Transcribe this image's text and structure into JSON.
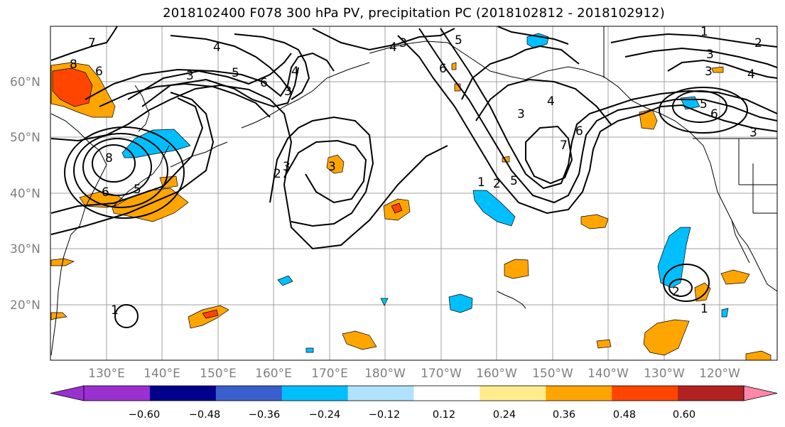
{
  "title": "2018102400 F078 300 hPa PV, precipitation PC (2018102812 - 2018102912)",
  "map": {
    "lat_labels": [
      "60°N",
      "50°N",
      "40°N",
      "30°N",
      "20°N"
    ],
    "lon_labels": [
      "130°E",
      "140°E",
      "150°E",
      "160°E",
      "170°E",
      "180°W",
      "170°W",
      "160°W",
      "150°W",
      "140°W",
      "130°W",
      "120°W"
    ],
    "grid": true,
    "contour_color": "#000000",
    "coastline_color": "#000000"
  },
  "colorbar": {
    "ticks": [
      "−0.60",
      "−0.48",
      "−0.36",
      "−0.24",
      "−0.12",
      "0.12",
      "0.24",
      "0.36",
      "0.48",
      "0.60"
    ],
    "colors": [
      "#9b30d0",
      "#00008b",
      "#3a5fcd",
      "#00bfff",
      "#b0e2ff",
      "#ffffff",
      "#ffec8b",
      "#ffa500",
      "#ff4500",
      "#b22222",
      "#ff88aa"
    ],
    "extend": "both"
  },
  "contour_labels": [
    {
      "text": "7"
    },
    {
      "text": "6"
    },
    {
      "text": "8"
    },
    {
      "text": "4"
    },
    {
      "text": "3"
    },
    {
      "text": "5"
    },
    {
      "text": "6"
    },
    {
      "text": "4"
    },
    {
      "text": "3"
    },
    {
      "text": "8"
    },
    {
      "text": "6"
    },
    {
      "text": "5"
    },
    {
      "text": "3"
    },
    {
      "text": "2"
    },
    {
      "text": "3"
    },
    {
      "text": "3"
    },
    {
      "text": "4"
    },
    {
      "text": "5"
    },
    {
      "text": "6"
    },
    {
      "text": "1"
    },
    {
      "text": "2"
    },
    {
      "text": "3"
    },
    {
      "text": "4"
    },
    {
      "text": "5"
    },
    {
      "text": "6"
    },
    {
      "text": "7"
    },
    {
      "text": "1"
    },
    {
      "text": "2"
    },
    {
      "text": "3"
    },
    {
      "text": "3"
    },
    {
      "text": "4"
    },
    {
      "text": "5"
    },
    {
      "text": "6"
    },
    {
      "text": "3"
    },
    {
      "text": "1"
    },
    {
      "text": "2"
    },
    {
      "text": "1"
    }
  ]
}
